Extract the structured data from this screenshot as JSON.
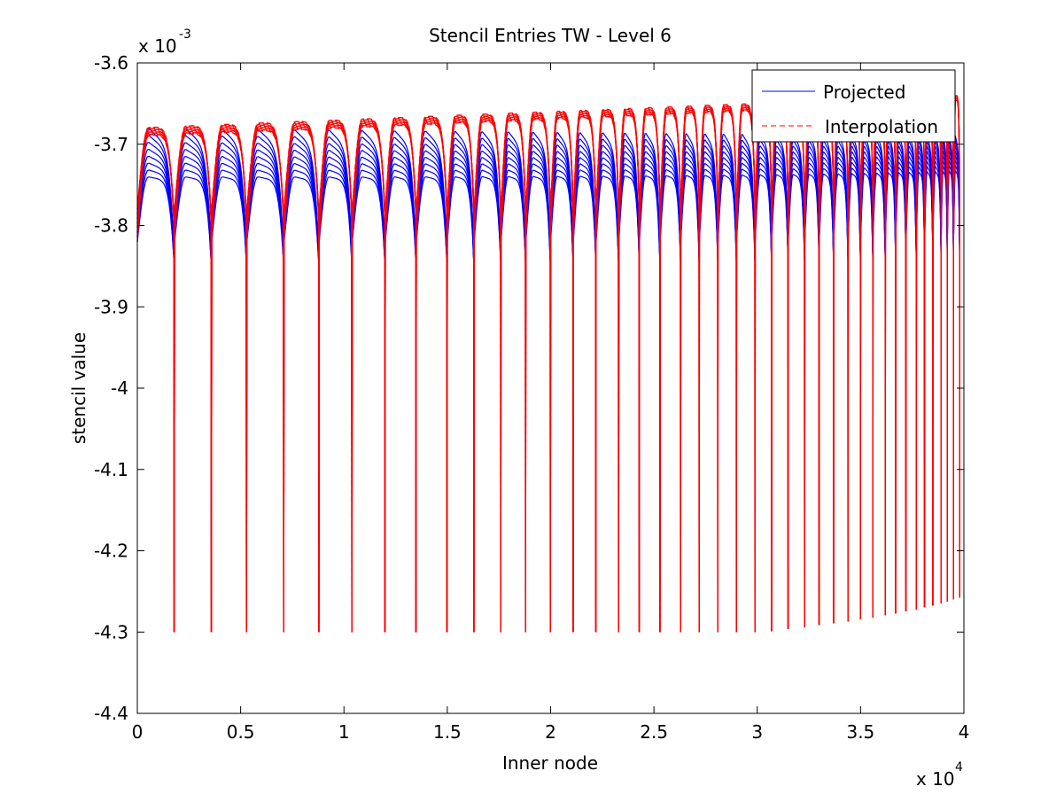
{
  "chart_data": {
    "type": "line",
    "title": "Stencil Entries TW - Level 6",
    "xlabel": "Inner node",
    "ylabel": "stencil value",
    "x_exponent_label": "x 10",
    "x_exponent": "4",
    "y_exponent_label": "x 10",
    "y_exponent": "-3",
    "xlim": [
      0,
      40000
    ],
    "ylim": [
      -0.0044,
      -0.0036
    ],
    "x_ticks": [
      0,
      5000,
      10000,
      15000,
      20000,
      25000,
      30000,
      35000,
      40000
    ],
    "x_tick_labels": [
      "0",
      "0.5",
      "1",
      "1.5",
      "2",
      "2.5",
      "3",
      "3.5",
      "4"
    ],
    "y_ticks": [
      -0.0036,
      -0.0037,
      -0.0038,
      -0.0039,
      -0.004,
      -0.0041,
      -0.0042,
      -0.0043,
      -0.0044
    ],
    "y_tick_labels": [
      "-3.6",
      "-3.7",
      "-3.8",
      "-3.9",
      "-4",
      "-4.1",
      "-4.2",
      "-4.3",
      "-4.4"
    ],
    "grid": false,
    "legend_position": "top-right",
    "series": [
      {
        "name": "Projected",
        "color": "#0000ff",
        "line_style": "solid",
        "description_shape": "repeating arcs with sharp drops",
        "envelope": {
          "x_end": 39800,
          "upper_start": -0.00368,
          "upper_end": -0.00369,
          "lower_min": -0.0043,
          "inner_band_value": -0.00375
        }
      },
      {
        "name": "Interpolation",
        "color": "#ff0000",
        "line_style": "dashed",
        "envelope": {
          "x_end": 39800,
          "upper_start": -0.00368,
          "upper_end": -0.00364,
          "lower_min": -0.0043
        }
      }
    ],
    "segment_starts": [
      0,
      1800,
      3600,
      5300,
      7100,
      8800,
      10400,
      12000,
      13500,
      15000,
      16300,
      17600,
      18800,
      20000,
      21100,
      22200,
      23300,
      24300,
      25300,
      26300,
      27200,
      28100,
      29000,
      29900,
      30700,
      31500,
      32300,
      33000,
      33700,
      34400,
      35000,
      35600,
      36200,
      36700,
      37200,
      37700,
      38100,
      38500,
      38900,
      39200,
      39500,
      39800
    ]
  }
}
